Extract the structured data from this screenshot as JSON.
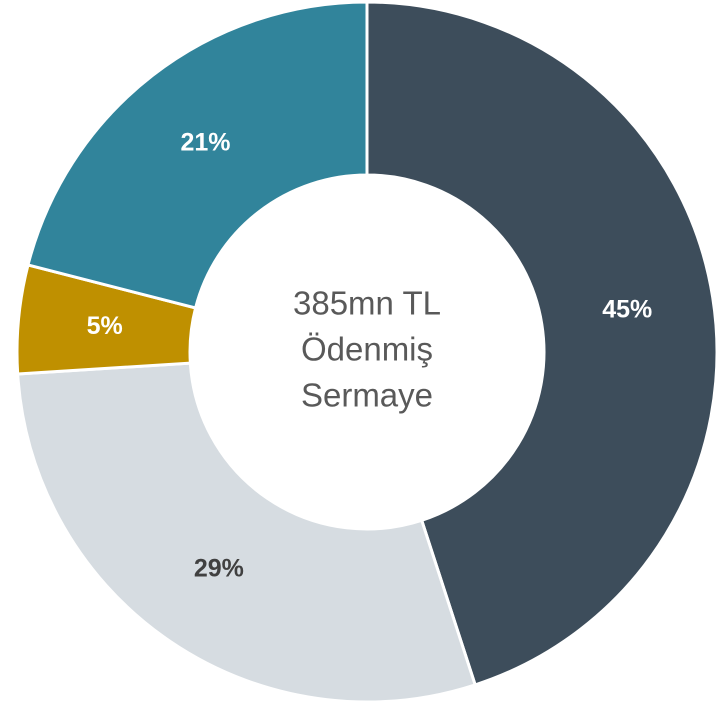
{
  "chart_data": {
    "type": "donut",
    "values": [
      45,
      29,
      5,
      21
    ],
    "value_labels": [
      "45%",
      "29%",
      "5%",
      "21%"
    ],
    "colors": [
      "#3d4d5b",
      "#d6dce1",
      "#bf9000",
      "#31849b"
    ],
    "label_colors": [
      "#ffffff",
      "#404040",
      "#ffffff",
      "#ffffff"
    ],
    "center_text": [
      "385mn TL",
      "Ödenmiş",
      "Sermaye"
    ]
  }
}
